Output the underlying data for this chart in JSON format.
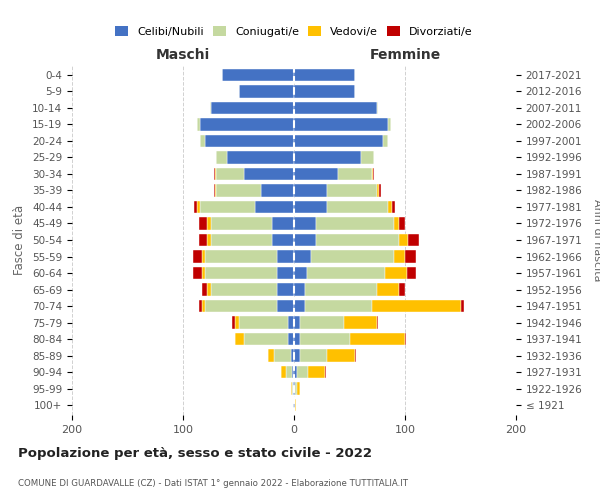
{
  "age_groups": [
    "100+",
    "95-99",
    "90-94",
    "85-89",
    "80-84",
    "75-79",
    "70-74",
    "65-69",
    "60-64",
    "55-59",
    "50-54",
    "45-49",
    "40-44",
    "35-39",
    "30-34",
    "25-29",
    "20-24",
    "15-19",
    "10-14",
    "5-9",
    "0-4"
  ],
  "birth_years": [
    "≤ 1921",
    "1922-1926",
    "1927-1931",
    "1932-1936",
    "1937-1941",
    "1942-1946",
    "1947-1951",
    "1952-1956",
    "1957-1961",
    "1962-1966",
    "1967-1971",
    "1972-1976",
    "1977-1981",
    "1982-1986",
    "1987-1991",
    "1992-1996",
    "1997-2001",
    "2002-2006",
    "2007-2011",
    "2012-2016",
    "2017-2021"
  ],
  "male_celibi": [
    1,
    1,
    2,
    3,
    5,
    5,
    15,
    15,
    15,
    15,
    20,
    20,
    35,
    30,
    45,
    60,
    80,
    85,
    75,
    50,
    65
  ],
  "male_coniugati": [
    0,
    1,
    5,
    15,
    40,
    45,
    65,
    60,
    65,
    65,
    55,
    55,
    50,
    40,
    25,
    10,
    5,
    2,
    1,
    0,
    0
  ],
  "male_vedovi": [
    0,
    1,
    5,
    5,
    8,
    3,
    3,
    3,
    3,
    3,
    3,
    3,
    2,
    1,
    1,
    0,
    0,
    0,
    0,
    0,
    0
  ],
  "male_divorziati": [
    0,
    0,
    0,
    0,
    0,
    3,
    3,
    5,
    8,
    8,
    8,
    8,
    3,
    1,
    1,
    0,
    0,
    0,
    0,
    0,
    0
  ],
  "female_celibi": [
    1,
    1,
    3,
    5,
    5,
    5,
    10,
    10,
    12,
    15,
    20,
    20,
    30,
    30,
    40,
    60,
    80,
    85,
    75,
    55,
    55
  ],
  "female_coniugati": [
    0,
    2,
    10,
    25,
    45,
    40,
    60,
    65,
    70,
    75,
    75,
    70,
    55,
    45,
    30,
    12,
    5,
    2,
    1,
    0,
    0
  ],
  "female_vedovi": [
    1,
    2,
    15,
    25,
    50,
    30,
    80,
    20,
    20,
    10,
    8,
    5,
    3,
    2,
    1,
    0,
    0,
    0,
    0,
    0,
    0
  ],
  "female_divorziati": [
    0,
    0,
    1,
    1,
    1,
    1,
    3,
    5,
    8,
    10,
    10,
    5,
    3,
    1,
    1,
    0,
    0,
    0,
    0,
    0,
    0
  ],
  "color_celibi": "#4472c4",
  "color_coniugati": "#c5d9a0",
  "color_vedovi": "#ffc000",
  "color_divorziati": "#c00000",
  "legend_labels": [
    "Celibi/Nubili",
    "Coniugati/e",
    "Vedovi/e",
    "Divorziati/e"
  ],
  "title": "Popolazione per età, sesso e stato civile - 2022",
  "subtitle": "COMUNE DI GUARDAVALLE (CZ) - Dati ISTAT 1° gennaio 2022 - Elaborazione TUTTITALIA.IT",
  "label_maschi": "Maschi",
  "label_femmine": "Femmine",
  "ylabel_left": "Fasce di età",
  "ylabel_right": "Anni di nascita",
  "xlim": 200,
  "bg_color": "#ffffff",
  "grid_color": "#cccccc"
}
